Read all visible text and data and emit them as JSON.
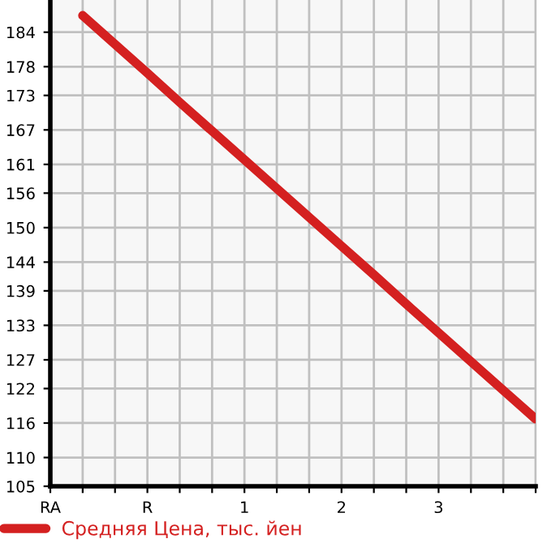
{
  "chart_data": {
    "type": "line",
    "categories": [
      "RA",
      null,
      null,
      "R",
      null,
      null,
      "1",
      null,
      null,
      "2",
      null,
      null,
      "3",
      null,
      null,
      null
    ],
    "ylim": [
      105,
      189.6
    ],
    "yticks": [
      105,
      110,
      116,
      122,
      127,
      133,
      139,
      144,
      150,
      156,
      161,
      167,
      173,
      178,
      184
    ],
    "grid": true,
    "legend": "bottom",
    "marker": "none",
    "line_style": "solid",
    "series": [
      {
        "name": "Средняя Цена, тыс. йен",
        "color": "#d42020",
        "values": [
          null,
          186.9,
          181.9,
          176.9,
          171.8,
          166.8,
          161.8,
          156.8,
          151.8,
          146.8,
          141.8,
          136.7,
          131.7,
          126.7,
          121.7,
          116.7
        ]
      }
    ]
  }
}
